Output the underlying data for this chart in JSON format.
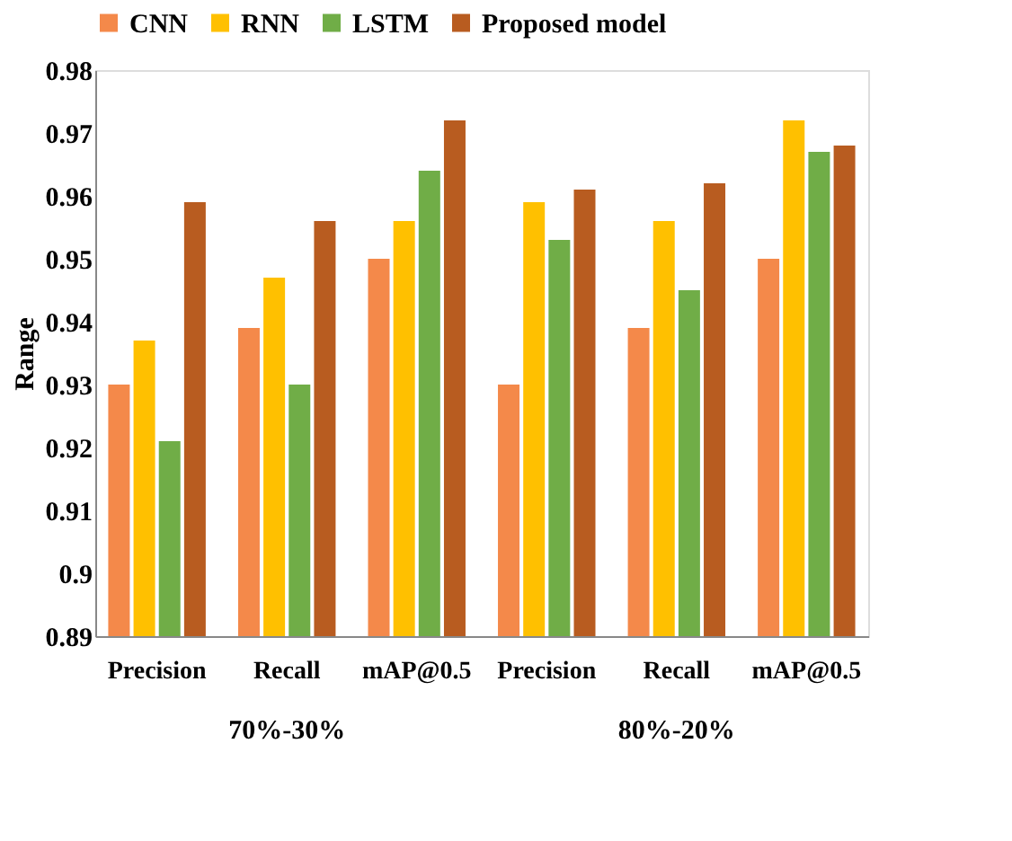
{
  "chart_data": {
    "type": "bar",
    "ylabel": "Range",
    "categories": [
      "Precision",
      "Recall",
      "mAP@0.5",
      "Precision",
      "Recall",
      "mAP@0.5"
    ],
    "series": [
      {
        "name": "CNN",
        "color": "#f4894a",
        "values": [
          0.93,
          0.939,
          0.95,
          0.93,
          0.939,
          0.95
        ]
      },
      {
        "name": "RNN",
        "color": "#ffc000",
        "values": [
          0.937,
          0.947,
          0.956,
          0.959,
          0.956,
          0.972
        ]
      },
      {
        "name": "LSTM",
        "color": "#70ad47",
        "values": [
          0.921,
          0.93,
          0.964,
          0.953,
          0.945,
          0.967
        ]
      },
      {
        "name": "Proposed model",
        "color": "#b85c20",
        "values": [
          0.959,
          0.956,
          0.972,
          0.961,
          0.962,
          0.968
        ]
      }
    ],
    "ylim": [
      0.89,
      0.98
    ],
    "yticks": [
      0.89,
      {
        "value": 0.9,
        "label": "0.9"
      },
      0.91,
      0.92,
      0.93,
      0.94,
      0.95,
      0.96,
      0.97,
      0.98
    ],
    "grid": false,
    "legend": "top",
    "annotations": [
      "70%-30%",
      "80%-20%"
    ]
  }
}
